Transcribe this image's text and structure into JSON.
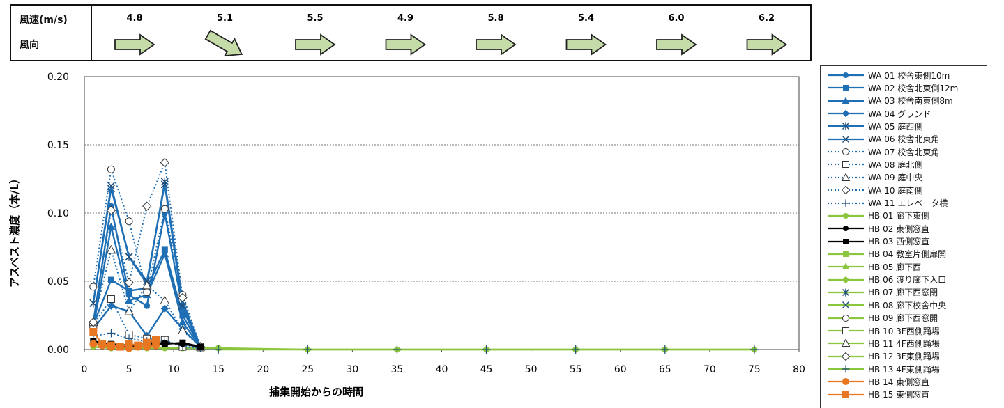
{
  "wind": {
    "speed_label": "風速(m/s)",
    "direction_label": "風向",
    "entries": [
      {
        "speed": "4.8",
        "direction": "east"
      },
      {
        "speed": "5.1",
        "direction": "southeast"
      },
      {
        "speed": "5.5",
        "direction": "east"
      },
      {
        "speed": "4.9",
        "direction": "east"
      },
      {
        "speed": "5.8",
        "direction": "east"
      },
      {
        "speed": "5.4",
        "direction": "east"
      },
      {
        "speed": "6.0",
        "direction": "east"
      },
      {
        "speed": "6.2",
        "direction": "east"
      }
    ],
    "arrow_color": "#c6dca8"
  },
  "chart_data": {
    "type": "line",
    "xlabel": "捕集開始からの時間",
    "ylabel": "アスベスト濃度（本/L）",
    "xlim": [
      0,
      80
    ],
    "ylim": [
      0,
      0.2
    ],
    "xticks": [
      "0",
      "5",
      "10",
      "15",
      "20",
      "25",
      "30",
      "35",
      "40",
      "45",
      "50",
      "55",
      "60",
      "65",
      "70",
      "75",
      "80"
    ],
    "yticks": [
      "0.00",
      "0.05",
      "0.10",
      "0.15",
      "0.20"
    ],
    "grid": "horizontal dotted",
    "legend_position": "right",
    "series": [
      {
        "name": "WA 01 校舎東側10m",
        "color": "#1f6fb5",
        "dash": "solid",
        "marker": "circle-filled",
        "points": [
          [
            1,
            0.02
          ],
          [
            3,
            0.105
          ],
          [
            5,
            0.04
          ],
          [
            7,
            0.032
          ],
          [
            9,
            0.1
          ],
          [
            11,
            0.03
          ],
          [
            13,
            0.002
          ]
        ]
      },
      {
        "name": "WA 02 校舎北東側12m",
        "color": "#1f6fb5",
        "dash": "solid",
        "marker": "square-filled",
        "points": [
          [
            1,
            0.018
          ],
          [
            3,
            0.051
          ],
          [
            5,
            0.043
          ],
          [
            7,
            0.045
          ],
          [
            9,
            0.073
          ],
          [
            11,
            0.025
          ],
          [
            13,
            0.002
          ]
        ]
      },
      {
        "name": "WA 03 校舎南東側8m",
        "color": "#1f6fb5",
        "dash": "solid",
        "marker": "triangle-filled",
        "points": [
          [
            1,
            0.016
          ],
          [
            3,
            0.09
          ],
          [
            5,
            0.036
          ],
          [
            7,
            0.04
          ],
          [
            9,
            0.07
          ],
          [
            11,
            0.02
          ],
          [
            13,
            0.002
          ]
        ]
      },
      {
        "name": "WA 04 グランド",
        "color": "#1f6fb5",
        "dash": "solid",
        "marker": "diamond-filled",
        "points": [
          [
            1,
            0.015
          ],
          [
            3,
            0.032
          ],
          [
            5,
            0.028
          ],
          [
            7,
            0.01
          ],
          [
            9,
            0.03
          ],
          [
            11,
            0.015
          ],
          [
            13,
            0.002
          ]
        ]
      },
      {
        "name": "WA 05 庭西側",
        "color": "#1f6fb5",
        "dash": "solid",
        "marker": "star",
        "points": [
          [
            1,
            0.034
          ],
          [
            3,
            0.118
          ],
          [
            5,
            0.068
          ],
          [
            7,
            0.048
          ],
          [
            9,
            0.123
          ],
          [
            11,
            0.035
          ],
          [
            13,
            0.002
          ]
        ]
      },
      {
        "name": "WA 06 校舎北東角",
        "color": "#1f6fb5",
        "dash": "solid",
        "marker": "x",
        "points": [
          [
            1,
            0.034
          ],
          [
            3,
            0.12
          ],
          [
            5,
            0.068
          ],
          [
            7,
            0.05
          ],
          [
            9,
            0.121
          ],
          [
            11,
            0.032
          ],
          [
            13,
            0.002
          ]
        ]
      },
      {
        "name": "WA 07 校舎北東角",
        "color": "#1f6fb5",
        "dash": "dotted",
        "marker": "circle-open",
        "points": [
          [
            1,
            0.046
          ],
          [
            3,
            0.132
          ],
          [
            5,
            0.094
          ],
          [
            7,
            0.042
          ],
          [
            9,
            0.103
          ],
          [
            11,
            0.04
          ],
          [
            13,
            0.002
          ]
        ]
      },
      {
        "name": "WA 08 庭北側",
        "color": "#1f6fb5",
        "dash": "dotted",
        "marker": "square-open",
        "points": [
          [
            1,
            0.018
          ],
          [
            3,
            0.037
          ],
          [
            5,
            0.011
          ],
          [
            7,
            0.008
          ],
          [
            9,
            0.007
          ],
          [
            11,
            0.002
          ],
          [
            13,
            0.001
          ]
        ]
      },
      {
        "name": "WA 09 庭中央",
        "color": "#1f6fb5",
        "dash": "dotted",
        "marker": "triangle-open",
        "points": [
          [
            1,
            0.02
          ],
          [
            3,
            0.073
          ],
          [
            5,
            0.028
          ],
          [
            7,
            0.047
          ],
          [
            9,
            0.036
          ],
          [
            11,
            0.014
          ],
          [
            13,
            0.002
          ]
        ]
      },
      {
        "name": "WA 10 庭南側",
        "color": "#1f6fb5",
        "dash": "dotted",
        "marker": "diamond-open",
        "points": [
          [
            1,
            0.02
          ],
          [
            3,
            0.102
          ],
          [
            5,
            0.049
          ],
          [
            7,
            0.105
          ],
          [
            9,
            0.137
          ],
          [
            11,
            0.038
          ],
          [
            13,
            0.002
          ]
        ]
      },
      {
        "name": "WA 11 エレベータ横",
        "color": "#1f6fb5",
        "dash": "dotted",
        "marker": "plus",
        "points": [
          [
            1,
            0.01
          ],
          [
            3,
            0.012
          ],
          [
            5,
            0.008
          ],
          [
            7,
            0.006
          ],
          [
            9,
            0.006
          ],
          [
            11,
            0.003
          ],
          [
            13,
            0.001
          ]
        ]
      },
      {
        "name": "HB 01 廊下東側",
        "color": "#8cc63f",
        "dash": "solid",
        "marker": "circle-filled",
        "points": [
          [
            1,
            0.002
          ],
          [
            3,
            0.001
          ],
          [
            5,
            0.001
          ],
          [
            7,
            0.001
          ],
          [
            9,
            0.001
          ],
          [
            11,
            0.001
          ],
          [
            13,
            0.001
          ],
          [
            15,
            0.001
          ],
          [
            25,
            0
          ],
          [
            35,
            0
          ],
          [
            45,
            0
          ],
          [
            55,
            0
          ],
          [
            65,
            0
          ],
          [
            75,
            0
          ]
        ]
      },
      {
        "name": "HB 02 東側窓直",
        "color": "#000000",
        "dash": "solid",
        "marker": "circle-filled",
        "points": [
          [
            1,
            0.004
          ],
          [
            3,
            0.003
          ],
          [
            5,
            0.002
          ],
          [
            7,
            0.004
          ],
          [
            9,
            0.005
          ],
          [
            11,
            0.004
          ],
          [
            13,
            0.002
          ]
        ]
      },
      {
        "name": "HB 03 西側窓直",
        "color": "#000000",
        "dash": "solid",
        "marker": "square-filled",
        "points": [
          [
            1,
            0.006
          ],
          [
            3,
            0.004
          ],
          [
            5,
            0.003
          ],
          [
            7,
            0.005
          ],
          [
            9,
            0.004
          ],
          [
            11,
            0.005
          ],
          [
            13,
            0.002
          ]
        ]
      },
      {
        "name": "HB 04 教室片側扉開",
        "color": "#8cc63f",
        "dash": "solid",
        "marker": "square-filled",
        "points": []
      },
      {
        "name": "HB 05 廊下西",
        "color": "#8cc63f",
        "dash": "solid",
        "marker": "triangle-filled",
        "points": []
      },
      {
        "name": "HB 06 渡り廊下入口",
        "color": "#8cc63f",
        "dash": "solid",
        "marker": "diamond-filled",
        "points": []
      },
      {
        "name": "HB 07 廊下西窓閉",
        "color": "#8cc63f",
        "dash": "solid",
        "marker": "star",
        "points": []
      },
      {
        "name": "HB 08 廊下校舎中央",
        "color": "#8cc63f",
        "dash": "solid",
        "marker": "x",
        "points": []
      },
      {
        "name": "HB 09 廊下西窓開",
        "color": "#8cc63f",
        "dash": "solid",
        "marker": "circle-open",
        "points": []
      },
      {
        "name": "HB 10 3F西側踊場",
        "color": "#8cc63f",
        "dash": "solid",
        "marker": "square-open",
        "points": []
      },
      {
        "name": "HB 11 4F西側踊場",
        "color": "#8cc63f",
        "dash": "solid",
        "marker": "triangle-open",
        "points": []
      },
      {
        "name": "HB 12 3F東側踊場",
        "color": "#8cc63f",
        "dash": "solid",
        "marker": "diamond-open",
        "points": []
      },
      {
        "name": "HB 13 4F東側踊場",
        "color": "#8cc63f",
        "dash": "solid",
        "marker": "plus",
        "points": [
          [
            15,
            0
          ],
          [
            25,
            0
          ],
          [
            35,
            0
          ],
          [
            45,
            0
          ],
          [
            55,
            0
          ],
          [
            65,
            0
          ],
          [
            75,
            0
          ]
        ]
      },
      {
        "name": "HB 14 東側窓直",
        "color": "#e87722",
        "dash": "solid",
        "marker": "circle-filled",
        "points": [
          [
            1,
            0.004
          ],
          [
            2,
            0.003
          ],
          [
            3,
            0.002
          ],
          [
            4,
            0.002
          ],
          [
            5,
            0.001
          ],
          [
            6,
            0.002
          ],
          [
            7,
            0.002
          ],
          [
            8,
            0.003
          ]
        ]
      },
      {
        "name": "HB 15 東側窓直",
        "color": "#e87722",
        "dash": "solid",
        "marker": "square-filled",
        "points": [
          [
            1,
            0.013
          ],
          [
            2,
            0.004
          ],
          [
            3,
            0.003
          ],
          [
            4,
            0.002
          ],
          [
            5,
            0.004
          ],
          [
            6,
            0.003
          ],
          [
            7,
            0.005
          ],
          [
            8,
            0.007
          ]
        ]
      }
    ]
  }
}
